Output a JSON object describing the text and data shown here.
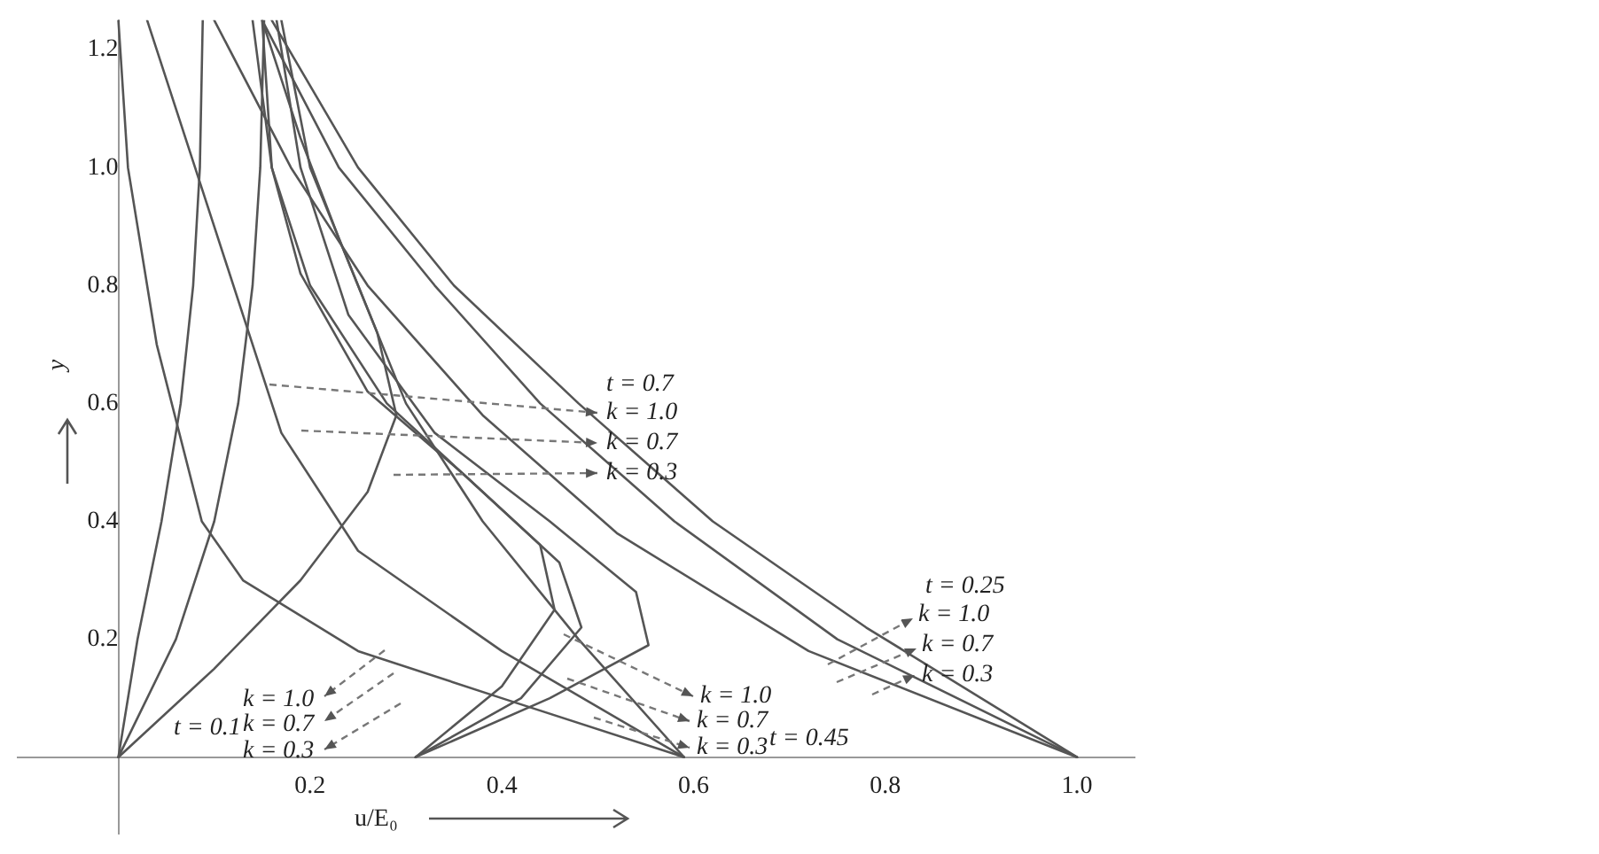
{
  "chart_data": {
    "type": "line",
    "xlabel": "u/E₀",
    "ylabel": "y",
    "xlim": [
      -0.105,
      1.06
    ],
    "ylim": [
      -0.13,
      1.25
    ],
    "xticks": [
      0.2,
      0.4,
      0.6,
      0.8,
      {
        "value": 1,
        "label": "1.0"
      }
    ],
    "yticks": [
      0.2,
      0.4,
      0.6,
      0.8,
      {
        "value": 1,
        "label": "1.0"
      },
      1.2
    ],
    "grid": false,
    "legend": false,
    "marker": "none",
    "line_style": "solid",
    "series": [
      {
        "color": "#555555",
        "x": [
          0,
          0.02,
          0.045,
          0.065,
          0.078,
          0.085,
          0.088
        ],
        "values": [
          0,
          0.2,
          0.4,
          0.6,
          0.8,
          1.0,
          1.25
        ]
      },
      {
        "color": "#555555",
        "x": [
          0,
          0.06,
          0.1,
          0.125,
          0.14,
          0.148,
          0.152
        ],
        "values": [
          0,
          0.2,
          0.4,
          0.6,
          0.8,
          1.0,
          1.25
        ]
      },
      {
        "color": "#555555",
        "x": [
          0,
          0.1,
          0.19,
          0.26,
          0.29,
          0.27,
          0.23,
          0.19,
          0.15
        ],
        "values": [
          0,
          0.15,
          0.3,
          0.45,
          0.58,
          0.72,
          0.88,
          1.05,
          1.25
        ]
      },
      {
        "color": "#555555",
        "x": [
          0.31,
          0.45,
          0.553,
          0.54,
          0.45,
          0.33,
          0.24,
          0.19,
          0.165
        ],
        "values": [
          0,
          0.1,
          0.19,
          0.28,
          0.4,
          0.55,
          0.75,
          1.0,
          1.25
        ]
      },
      {
        "color": "#555555",
        "x": [
          0.31,
          0.42,
          0.483,
          0.46,
          0.38,
          0.28,
          0.2,
          0.16,
          0.14
        ],
        "values": [
          0,
          0.1,
          0.22,
          0.33,
          0.45,
          0.6,
          0.8,
          1.0,
          1.25
        ]
      },
      {
        "color": "#555555",
        "x": [
          0.31,
          0.4,
          0.455,
          0.44,
          0.36,
          0.26,
          0.19,
          0.16,
          0.15
        ],
        "values": [
          0,
          0.12,
          0.25,
          0.36,
          0.48,
          0.62,
          0.82,
          1.0,
          1.25
        ]
      },
      {
        "color": "#555555",
        "x": [
          0.0,
          0.01,
          0.04,
          0.087,
          0.13,
          0.25,
          0.4,
          0.59
        ],
        "values": [
          1.25,
          1.0,
          0.7,
          0.4,
          0.3,
          0.18,
          0.1,
          0
        ]
      },
      {
        "color": "#555555",
        "x": [
          0.03,
          0.08,
          0.13,
          0.17,
          0.25,
          0.4,
          0.59
        ],
        "values": [
          1.25,
          1.0,
          0.75,
          0.55,
          0.35,
          0.18,
          0
        ]
      },
      {
        "color": "#555555",
        "x": [
          0.17,
          0.2,
          0.25,
          0.3,
          0.38,
          0.48,
          0.59
        ],
        "values": [
          1.25,
          1.0,
          0.8,
          0.6,
          0.4,
          0.2,
          0
        ]
      },
      {
        "color": "#555555",
        "x": [
          0.16,
          0.25,
          0.35,
          0.48,
          0.62,
          0.78,
          1.0
        ],
        "values": [
          1.25,
          1.0,
          0.8,
          0.6,
          0.4,
          0.22,
          0
        ]
      },
      {
        "color": "#555555",
        "x": [
          0.15,
          0.23,
          0.33,
          0.44,
          0.58,
          0.75,
          1.0
        ],
        "values": [
          1.25,
          1.0,
          0.8,
          0.6,
          0.4,
          0.2,
          0
        ]
      },
      {
        "color": "#555555",
        "x": [
          0.1,
          0.18,
          0.26,
          0.38,
          0.52,
          0.72,
          1.0
        ],
        "values": [
          1.25,
          1.0,
          0.8,
          0.58,
          0.38,
          0.18,
          0
        ]
      }
    ],
    "annotations": [
      "t = 0.7",
      "k = 1.0",
      "k = 0.7",
      "k = 0.3",
      "t = 0.25",
      "k = 1.0",
      "k = 0.7",
      "k = 0.3",
      "k = 1.0",
      "k = 0.7",
      "k = 0.3",
      "t = 0.45",
      "k = 1.0",
      "t = 0.1",
      "k = 0.7",
      "k = 0.3"
    ]
  }
}
